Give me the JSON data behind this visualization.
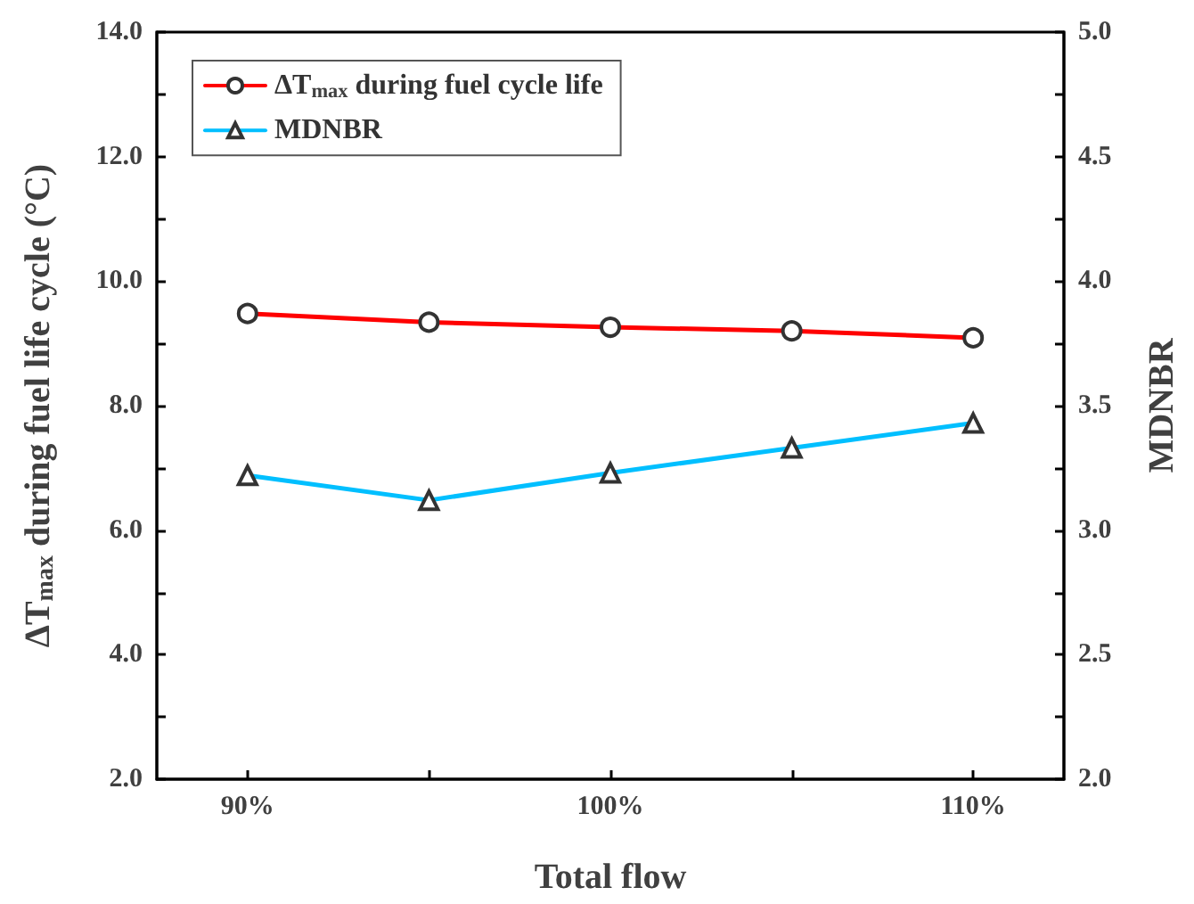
{
  "chart_data": {
    "type": "line",
    "xlabel": "Total flow",
    "ylabel": "ΔT$_{max}$ during fuel life cycle (°C)",
    "y2label": "MDNBR",
    "x": [
      90,
      95,
      100,
      105,
      110
    ],
    "xlim": [
      87.5,
      112.5
    ],
    "xticks": [
      {
        "value": 90,
        "label": "90%"
      },
      {
        "value": 95,
        "label": null
      },
      {
        "value": 100,
        "label": "100%"
      },
      {
        "value": 105,
        "label": null
      },
      {
        "value": 110,
        "label": "110%"
      }
    ],
    "ylim": [
      2,
      14
    ],
    "yticks": [
      {
        "value": 2,
        "label": "2.0"
      },
      {
        "value": 3,
        "label": null
      },
      {
        "value": 4,
        "label": "4.0"
      },
      {
        "value": 5,
        "label": null
      },
      {
        "value": 6,
        "label": "6.0"
      },
      {
        "value": 7,
        "label": null
      },
      {
        "value": 8,
        "label": "8.0"
      },
      {
        "value": 9,
        "label": null
      },
      {
        "value": 10,
        "label": "10.0"
      },
      {
        "value": 11,
        "label": null
      },
      {
        "value": 12,
        "label": "12.0"
      },
      {
        "value": 13,
        "label": null
      },
      {
        "value": 14,
        "label": "14.0"
      }
    ],
    "y2lim": [
      2,
      5
    ],
    "y2ticks": [
      {
        "value": 2,
        "label": "2.0"
      },
      {
        "value": 2.25,
        "label": null
      },
      {
        "value": 2.5,
        "label": "2.5"
      },
      {
        "value": 2.75,
        "label": null
      },
      {
        "value": 3,
        "label": "3.0"
      },
      {
        "value": 3.25,
        "label": null
      },
      {
        "value": 3.5,
        "label": "3.5"
      },
      {
        "value": 3.75,
        "label": null
      },
      {
        "value": 4,
        "label": "4.0"
      },
      {
        "value": 4.25,
        "label": null
      },
      {
        "value": 4.5,
        "label": "4.5"
      },
      {
        "value": 4.75,
        "label": null
      },
      {
        "value": 5,
        "label": "5.0"
      }
    ],
    "series": [
      {
        "name": "ΔT$_{max}$ during fuel cycle life",
        "color": "#ff0000",
        "marker": "circle",
        "values": [
          9.48,
          9.34,
          9.26,
          9.2,
          9.09
        ]
      },
      {
        "name": "MDNBR",
        "color": "#00bfff",
        "marker": "triangle",
        "axis": "y2",
        "values": [
          3.22,
          3.12,
          3.23,
          3.33,
          3.43
        ]
      }
    ],
    "legend": "top left",
    "grid": false,
    "line_style": "solid"
  }
}
